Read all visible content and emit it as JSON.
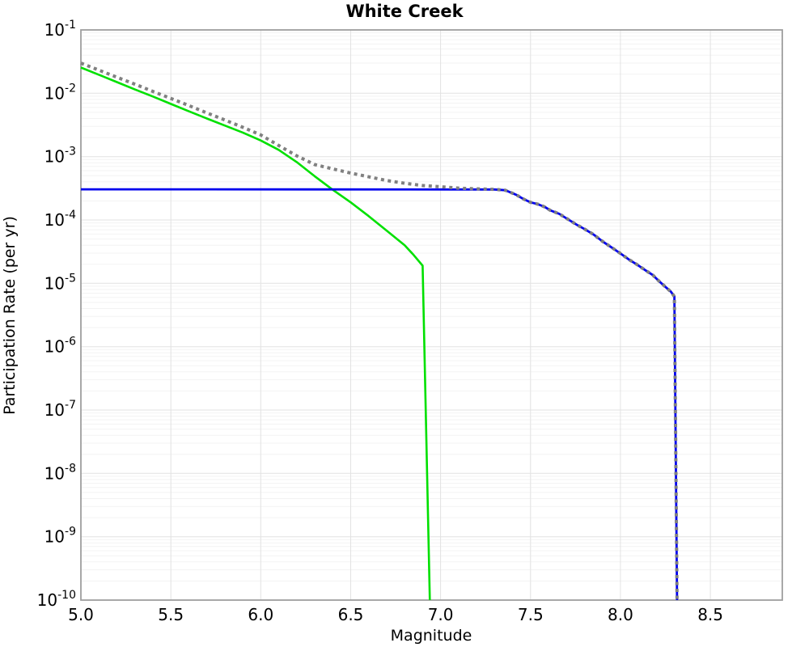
{
  "chart_data": {
    "type": "line",
    "title": "White Creek",
    "xlabel": "Magnitude",
    "ylabel": "Participation Rate (per yr)",
    "x_scale": "linear",
    "y_scale": "log",
    "xlim": [
      5.0,
      8.9
    ],
    "ylim": [
      1e-10,
      0.1
    ],
    "x_ticks": [
      5.0,
      5.5,
      6.0,
      6.5,
      7.0,
      7.5,
      8.0,
      8.5
    ],
    "x_tick_labels": [
      "5.0",
      "5.5",
      "6.0",
      "6.5",
      "7.0",
      "7.5",
      "8.0",
      "8.5"
    ],
    "y_tick_exponents": [
      -1,
      -2,
      -3,
      -4,
      -5,
      -6,
      -7,
      -8,
      -9,
      -10
    ],
    "grid": true,
    "legend_position": "none",
    "colors": {
      "major_grid": "#e2e2e2",
      "minor_grid": "#f3f3f3",
      "frame": "#9e9e9e",
      "background": "#ffffff"
    },
    "series": [
      {
        "name": "green-solid-curve",
        "style": "solid",
        "color": "#00e000",
        "width": 2.6,
        "points": [
          [
            5.0,
            0.0255
          ],
          [
            5.1,
            0.0196
          ],
          [
            5.2,
            0.015
          ],
          [
            5.3,
            0.0115
          ],
          [
            5.4,
            0.0089
          ],
          [
            5.5,
            0.0068
          ],
          [
            5.6,
            0.0052
          ],
          [
            5.7,
            0.004
          ],
          [
            5.8,
            0.0031
          ],
          [
            5.9,
            0.0024
          ],
          [
            6.0,
            0.0018
          ],
          [
            6.1,
            0.00128
          ],
          [
            6.2,
            0.00082
          ],
          [
            6.3,
            0.00049
          ],
          [
            6.4,
            0.0003
          ],
          [
            6.5,
            0.00019
          ],
          [
            6.6,
            0.000115
          ],
          [
            6.7,
            6.8e-05
          ],
          [
            6.8,
            4e-05
          ],
          [
            6.85,
            2.8e-05
          ],
          [
            6.9,
            1.9e-05
          ],
          [
            6.94,
            1e-10
          ]
        ]
      },
      {
        "name": "blue-solid-curve",
        "style": "solid",
        "color": "#0000ee",
        "width": 2.8,
        "points": [
          [
            5.0,
            0.000305
          ],
          [
            7.3,
            0.000303
          ],
          [
            7.36,
            0.000295
          ],
          [
            7.42,
            0.00025
          ],
          [
            7.46,
            0.000215
          ],
          [
            7.5,
            0.00019
          ],
          [
            7.54,
            0.000178
          ],
          [
            7.58,
            0.00016
          ],
          [
            7.61,
            0.000142
          ],
          [
            7.66,
            0.000125
          ],
          [
            7.7,
            0.000106
          ],
          [
            7.76,
            8.3e-05
          ],
          [
            7.8,
            7.2e-05
          ],
          [
            7.85,
            5.9e-05
          ],
          [
            7.9,
            4.6e-05
          ],
          [
            7.95,
            3.7e-05
          ],
          [
            8.0,
            2.96e-05
          ],
          [
            8.05,
            2.35e-05
          ],
          [
            8.09,
            2e-05
          ],
          [
            8.14,
            1.6e-05
          ],
          [
            8.18,
            1.35e-05
          ],
          [
            8.22,
            1.05e-05
          ],
          [
            8.25,
            8.8e-06
          ],
          [
            8.28,
            7.4e-06
          ],
          [
            8.3,
            6.2e-06
          ],
          [
            8.315,
            1e-10
          ]
        ]
      },
      {
        "name": "gray-dotted-curve",
        "style": "dotted",
        "color": "#808080",
        "width": 4,
        "points": [
          [
            5.0,
            0.03
          ],
          [
            5.1,
            0.0232
          ],
          [
            5.2,
            0.0179
          ],
          [
            5.3,
            0.0139
          ],
          [
            5.4,
            0.0107
          ],
          [
            5.5,
            0.0083
          ],
          [
            5.6,
            0.0064
          ],
          [
            5.7,
            0.0049
          ],
          [
            5.8,
            0.0038
          ],
          [
            5.9,
            0.0029
          ],
          [
            6.0,
            0.0022
          ],
          [
            6.1,
            0.0015
          ],
          [
            6.2,
            0.00103
          ],
          [
            6.3,
            0.00075
          ],
          [
            6.4,
            0.00064
          ],
          [
            6.5,
            0.00055
          ],
          [
            6.6,
            0.00048
          ],
          [
            6.7,
            0.00042
          ],
          [
            6.8,
            0.00038
          ],
          [
            6.9,
            0.00035
          ],
          [
            7.0,
            0.000335
          ],
          [
            7.1,
            0.000318
          ],
          [
            7.2,
            0.00031
          ],
          [
            7.3,
            0.000305
          ],
          [
            7.36,
            0.000295
          ],
          [
            7.42,
            0.00025
          ],
          [
            7.46,
            0.000215
          ],
          [
            7.5,
            0.00019
          ],
          [
            7.54,
            0.000178
          ],
          [
            7.58,
            0.00016
          ],
          [
            7.61,
            0.000142
          ],
          [
            7.66,
            0.000125
          ],
          [
            7.7,
            0.000106
          ],
          [
            7.76,
            8.3e-05
          ],
          [
            7.8,
            7.2e-05
          ],
          [
            7.85,
            5.9e-05
          ],
          [
            7.9,
            4.6e-05
          ],
          [
            7.95,
            3.7e-05
          ],
          [
            8.0,
            2.96e-05
          ],
          [
            8.05,
            2.35e-05
          ],
          [
            8.09,
            2e-05
          ],
          [
            8.14,
            1.6e-05
          ],
          [
            8.18,
            1.35e-05
          ],
          [
            8.22,
            1.05e-05
          ],
          [
            8.25,
            8.8e-06
          ],
          [
            8.28,
            7.4e-06
          ],
          [
            8.3,
            6.2e-06
          ],
          [
            8.315,
            1e-10
          ]
        ]
      }
    ]
  }
}
